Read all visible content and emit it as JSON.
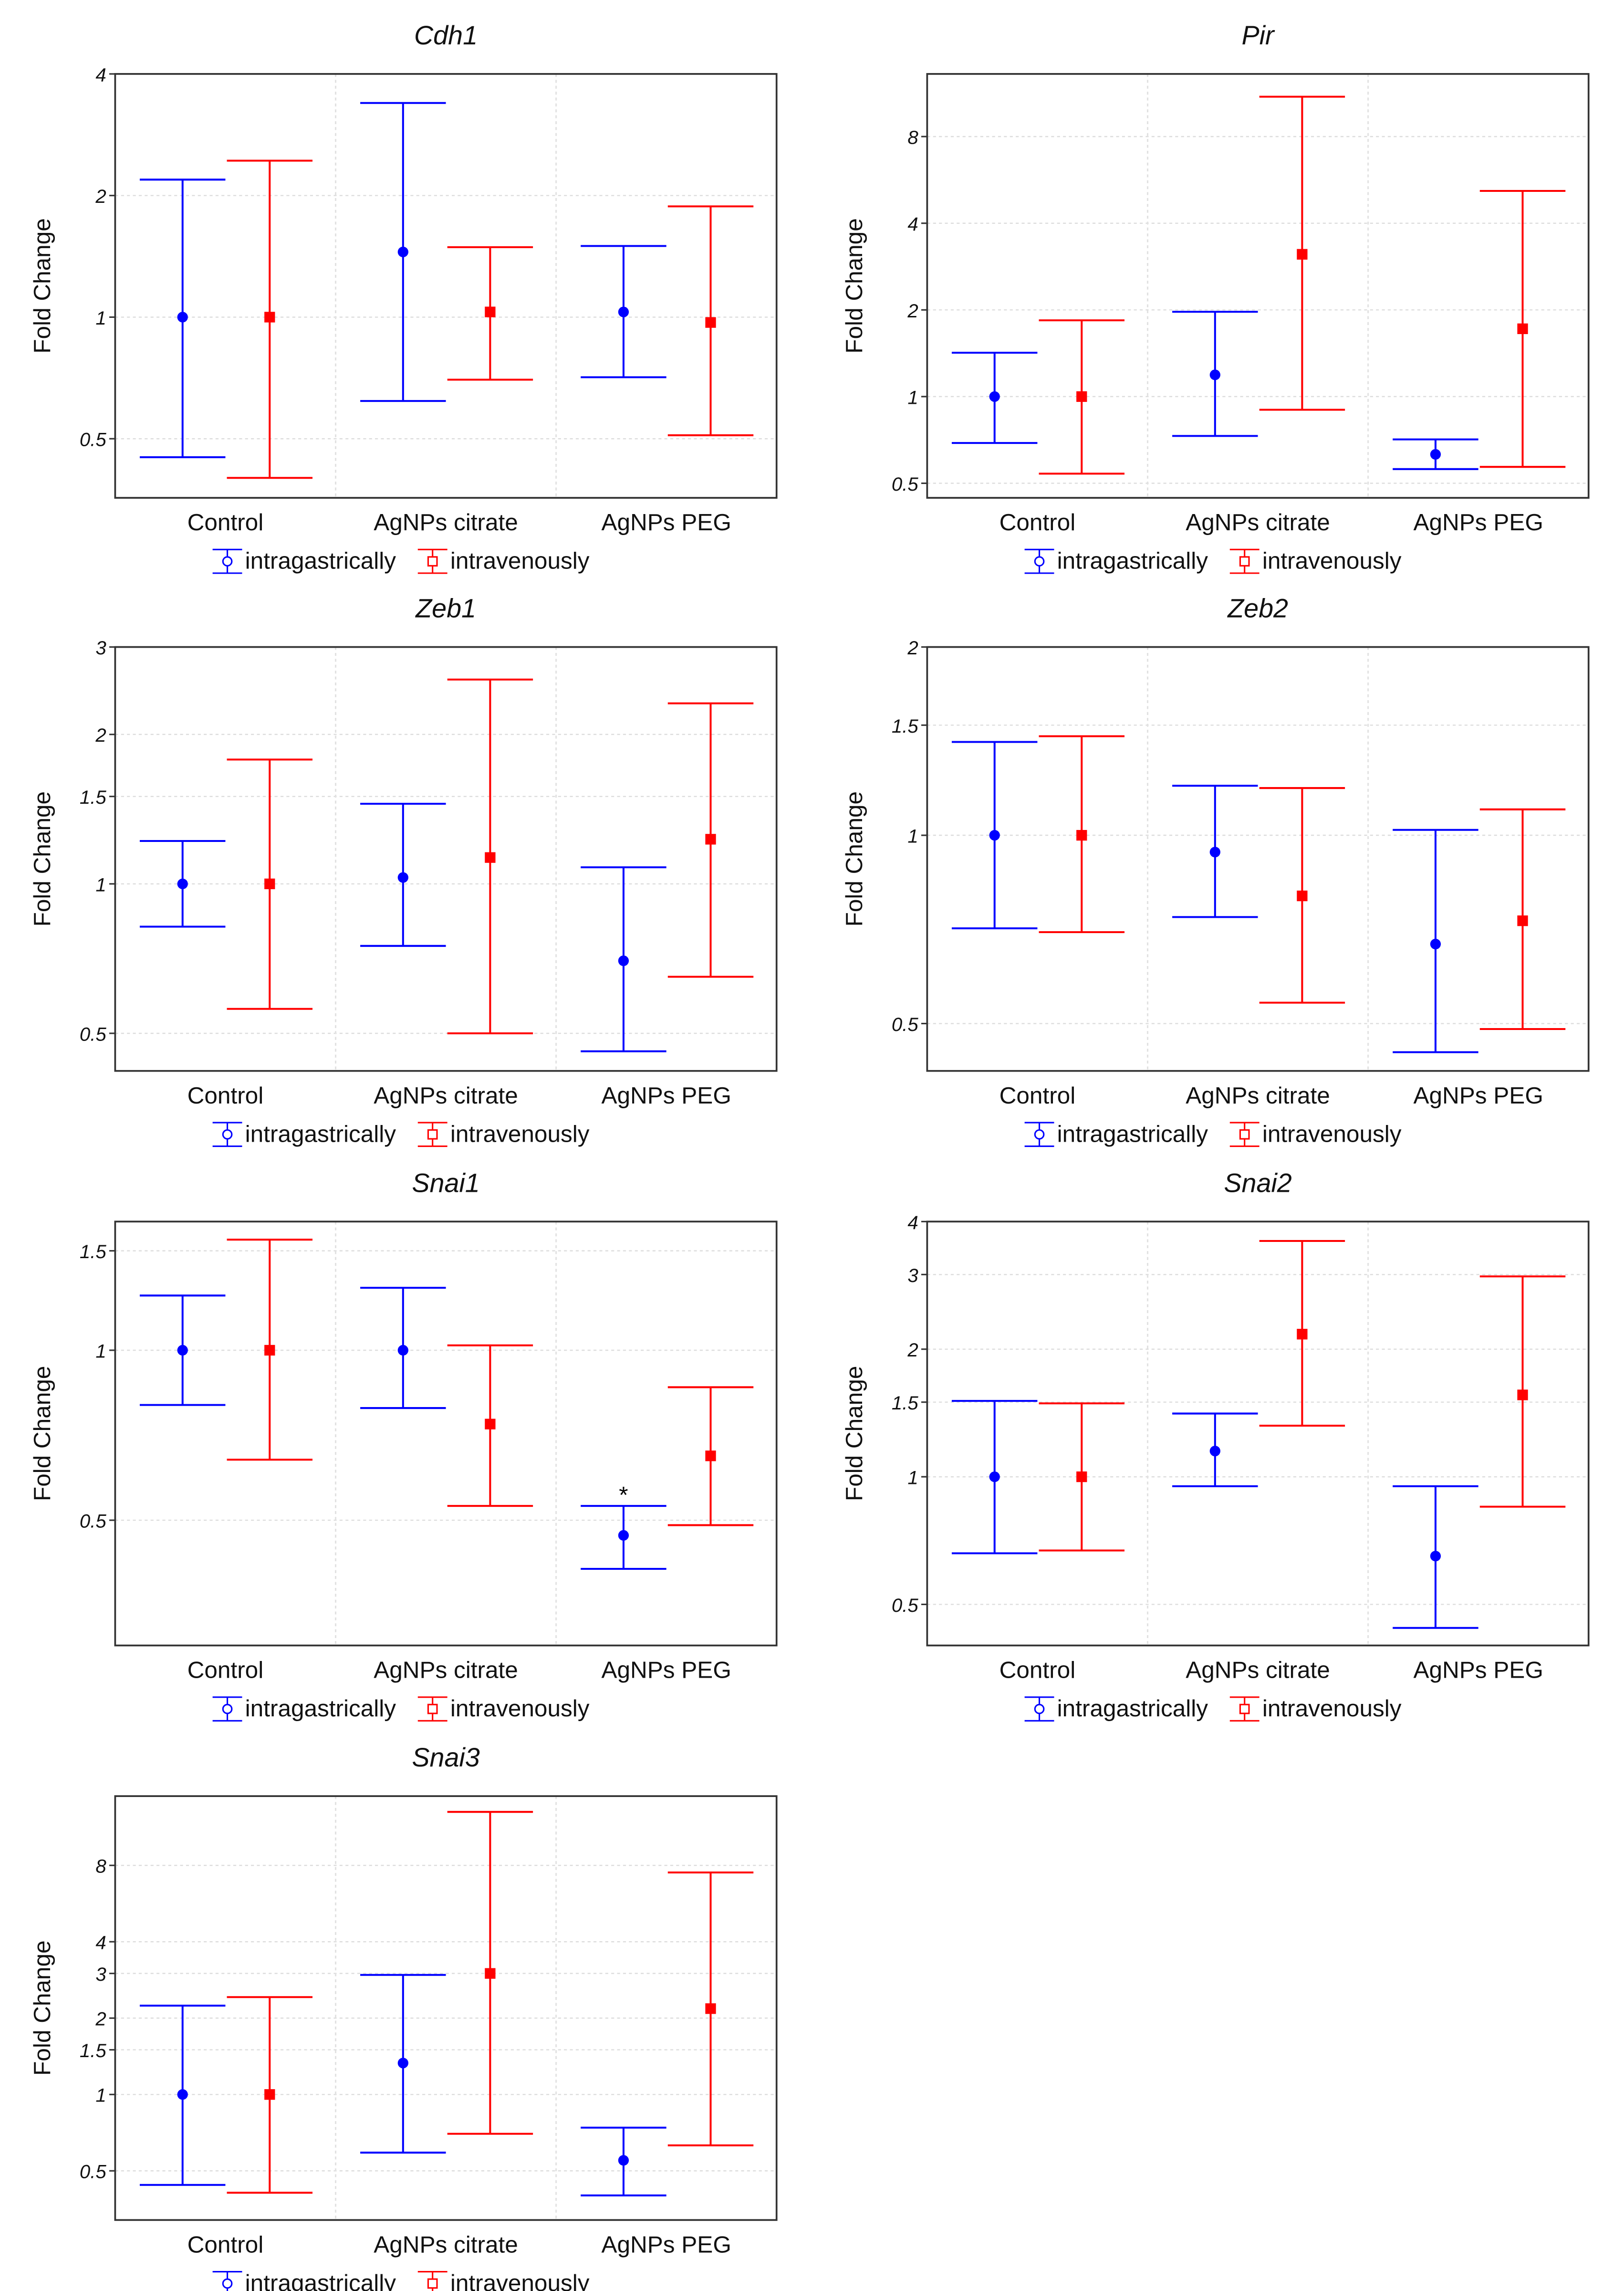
{
  "legend": {
    "series": [
      "intragastrically",
      "intravenously"
    ]
  },
  "colors": {
    "intragastrically": "#0000ff",
    "intravenously": "#ff0000"
  },
  "chart_data": [
    {
      "type": "errorbar",
      "title": "Cdh1",
      "ylabel": "Fold Change",
      "yscale": "log",
      "ylim": [
        0.357,
        4
      ],
      "yticks": [
        0.5,
        1,
        2,
        4
      ],
      "ytick_labels": [
        "0.5",
        "1",
        "2",
        "4"
      ],
      "categories": [
        "Control",
        "AgNPs citrate",
        "AgNPs PEG"
      ],
      "series": [
        {
          "name": "intragastrically",
          "mean": [
            1,
            1.45,
            1.03
          ],
          "lower": [
            0.45,
            0.62,
            0.71
          ],
          "upper": [
            2.19,
            3.39,
            1.5
          ]
        },
        {
          "name": "intravenously",
          "mean": [
            1,
            1.03,
            0.97
          ],
          "lower": [
            0.4,
            0.7,
            0.51
          ],
          "upper": [
            2.44,
            1.49,
            1.88
          ]
        }
      ],
      "annotations": []
    },
    {
      "type": "errorbar",
      "title": "Pir",
      "ylabel": "Fold Change",
      "yscale": "log",
      "ylim": [
        0.445,
        13.2
      ],
      "yticks": [
        0.5,
        1,
        2,
        4,
        8
      ],
      "ytick_labels": [
        "0.5",
        "1",
        "2",
        "4",
        "8"
      ],
      "categories": [
        "Control",
        "AgNPs citrate",
        "AgNPs PEG"
      ],
      "series": [
        {
          "name": "intragastrically",
          "mean": [
            1,
            1.19,
            0.63
          ],
          "lower": [
            0.69,
            0.73,
            0.56
          ],
          "upper": [
            1.42,
            1.97,
            0.71
          ]
        },
        {
          "name": "intravenously",
          "mean": [
            1,
            3.12,
            1.72
          ],
          "lower": [
            0.54,
            0.9,
            0.57
          ],
          "upper": [
            1.84,
            11.0,
            5.18
          ]
        }
      ],
      "annotations": []
    },
    {
      "type": "errorbar",
      "title": "Zeb1",
      "ylabel": "Fold Change",
      "yscale": "log",
      "ylim": [
        0.42,
        3
      ],
      "yticks": [
        0.5,
        1,
        1.5,
        2,
        3
      ],
      "ytick_labels": [
        "0.5",
        "1",
        "1.5",
        "2",
        "3"
      ],
      "categories": [
        "Control",
        "AgNPs citrate",
        "AgNPs PEG"
      ],
      "series": [
        {
          "name": "intragastrically",
          "mean": [
            1,
            1.03,
            0.7
          ],
          "lower": [
            0.82,
            0.75,
            0.46
          ],
          "upper": [
            1.22,
            1.45,
            1.08
          ]
        },
        {
          "name": "intravenously",
          "mean": [
            1,
            1.13,
            1.23
          ],
          "lower": [
            0.56,
            0.5,
            0.65
          ],
          "upper": [
            1.78,
            2.58,
            2.31
          ]
        }
      ],
      "annotations": []
    },
    {
      "type": "errorbar",
      "title": "Zeb2",
      "ylabel": "Fold Change",
      "yscale": "log",
      "ylim": [
        0.42,
        2
      ],
      "yticks": [
        0.5,
        1,
        1.5,
        2
      ],
      "ytick_labels": [
        "0.5",
        "1",
        "1.5",
        "2"
      ],
      "categories": [
        "Control",
        "AgNPs citrate",
        "AgNPs PEG"
      ],
      "series": [
        {
          "name": "intragastrically",
          "mean": [
            1,
            0.94,
            0.67
          ],
          "lower": [
            0.71,
            0.74,
            0.45
          ],
          "upper": [
            1.41,
            1.2,
            1.02
          ]
        },
        {
          "name": "intravenously",
          "mean": [
            1,
            0.8,
            0.73
          ],
          "lower": [
            0.7,
            0.54,
            0.49
          ],
          "upper": [
            1.44,
            1.19,
            1.1
          ]
        }
      ],
      "annotations": []
    },
    {
      "type": "errorbar",
      "title": "Snai1",
      "ylabel": "Fold Change",
      "yscale": "log",
      "ylim": [
        0.3,
        1.69
      ],
      "yticks": [
        0.5,
        1,
        1.5
      ],
      "ytick_labels": [
        "0.5",
        "1",
        "1.5"
      ],
      "categories": [
        "Control",
        "AgNPs citrate",
        "AgNPs PEG"
      ],
      "series": [
        {
          "name": "intragastrically",
          "mean": [
            1,
            1.0,
            0.47
          ],
          "lower": [
            0.8,
            0.79,
            0.41
          ],
          "upper": [
            1.25,
            1.29,
            0.53
          ]
        },
        {
          "name": "intravenously",
          "mean": [
            1,
            0.74,
            0.65
          ],
          "lower": [
            0.64,
            0.53,
            0.49
          ],
          "upper": [
            1.57,
            1.02,
            0.86
          ]
        }
      ],
      "annotations": [
        {
          "text": "*",
          "category": "AgNPs PEG",
          "series": "intragastrically"
        }
      ]
    },
    {
      "type": "errorbar",
      "title": "Snai2",
      "ylabel": "Fold Change",
      "yscale": "log",
      "ylim": [
        0.4,
        4
      ],
      "yticks": [
        0.5,
        1,
        1.5,
        2,
        3,
        4
      ],
      "ytick_labels": [
        "0.5",
        "1",
        "1.5",
        "2",
        "3",
        "4"
      ],
      "categories": [
        "Control",
        "AgNPs citrate",
        "AgNPs PEG"
      ],
      "series": [
        {
          "name": "intragastrically",
          "mean": [
            1,
            1.15,
            0.65
          ],
          "lower": [
            0.66,
            0.95,
            0.44
          ],
          "upper": [
            1.51,
            1.41,
            0.95
          ]
        },
        {
          "name": "intravenously",
          "mean": [
            1,
            2.17,
            1.56
          ],
          "lower": [
            0.67,
            1.32,
            0.85
          ],
          "upper": [
            1.49,
            3.6,
            2.97
          ]
        }
      ],
      "annotations": []
    },
    {
      "type": "errorbar",
      "title": "Snai3",
      "ylabel": "Fold Change",
      "yscale": "log",
      "ylim": [
        0.32,
        15
      ],
      "yticks": [
        0.5,
        1,
        1.5,
        2,
        3,
        4,
        8
      ],
      "ytick_labels": [
        "0.5",
        "1",
        "1.5",
        "2",
        "3",
        "4",
        "8"
      ],
      "categories": [
        "Control",
        "AgNPs citrate",
        "AgNPs PEG"
      ],
      "series": [
        {
          "name": "intragastrically",
          "mean": [
            1,
            1.33,
            0.55
          ],
          "lower": [
            0.44,
            0.59,
            0.4
          ],
          "upper": [
            2.24,
            2.96,
            0.74
          ]
        },
        {
          "name": "intravenously",
          "mean": [
            1,
            3.0,
            2.18
          ],
          "lower": [
            0.41,
            0.7,
            0.63
          ],
          "upper": [
            2.42,
            13,
            7.5
          ]
        }
      ],
      "annotations": []
    }
  ]
}
